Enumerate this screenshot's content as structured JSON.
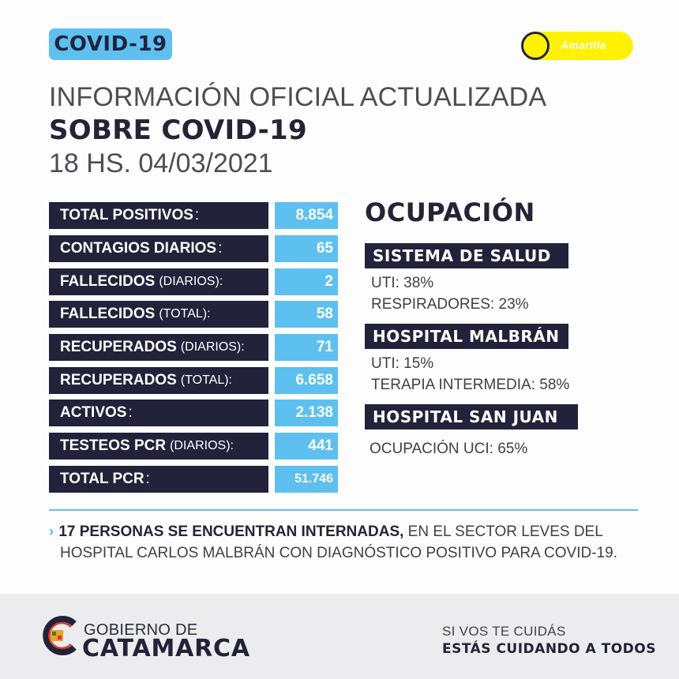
{
  "header": {
    "badge": "COVID-19",
    "level": "Amarilla",
    "title_line1": "INFORMACIÓN OFICIAL ACTUALIZADA",
    "title_line2": "SOBRE COVID-19",
    "title_line3": "18 HS. 04/03/2021"
  },
  "stats": [
    {
      "label": "TOTAL POSITIVOS",
      "sub": "",
      "value": "8.854"
    },
    {
      "label": "CONTAGIOS DIARIOS",
      "sub": "",
      "value": "65"
    },
    {
      "label": "FALLECIDOS",
      "sub": "(DIARIOS):",
      "value": "2"
    },
    {
      "label": "FALLECIDOS",
      "sub": "(TOTAL):",
      "value": "58"
    },
    {
      "label": "RECUPERADOS",
      "sub": "(DIARIOS):",
      "value": "71"
    },
    {
      "label": "RECUPERADOS",
      "sub": "(TOTAL):",
      "value": "6.658"
    },
    {
      "label": "ACTIVOS",
      "sub": "",
      "value": "2.138"
    },
    {
      "label": "TESTEOS PCR",
      "sub": "(DIARIOS):",
      "value": "441"
    },
    {
      "label": "TOTAL PCR",
      "sub": "",
      "value": "51.746"
    }
  ],
  "ocupacion": {
    "title": "OCUPACIÓN",
    "sistema_salud": {
      "head": "SISTEMA DE SALUD",
      "lines": [
        "UTI: 38%",
        "RESPIRADORES: 23%"
      ]
    },
    "hospital_malbran": {
      "head": "HOSPITAL MALBRÁN",
      "lines": [
        "UTI: 15%",
        "TERAPIA INTERMEDIA: 58%"
      ]
    },
    "hospital_san_juan": {
      "head": "HOSPITAL SAN JUAN",
      "lines": [
        "OCUPACIÓN UCI: 65%"
      ]
    }
  },
  "note": {
    "arrow": "›",
    "strong": "17 PERSONAS SE ENCUENTRAN INTERNADAS,",
    "rest": " EN EL SECTOR LEVES DEL",
    "line2": "HOSPITAL CARLOS MALBRÁN CON DIAGNÓSTICO POSITIVO PARA COVID-19."
  },
  "footer": {
    "logo_top": "GOBIERNO DE",
    "logo_bottom": "CATAMARCA",
    "slogan_line1": "SI VOS TE CUIDÁS",
    "slogan_line2": "ESTÁS CUIDANDO A TODOS"
  },
  "colors": {
    "accent_blue": "#5ec0ee",
    "dark_navy": "#22223a",
    "level_yellow": "#fff200"
  }
}
